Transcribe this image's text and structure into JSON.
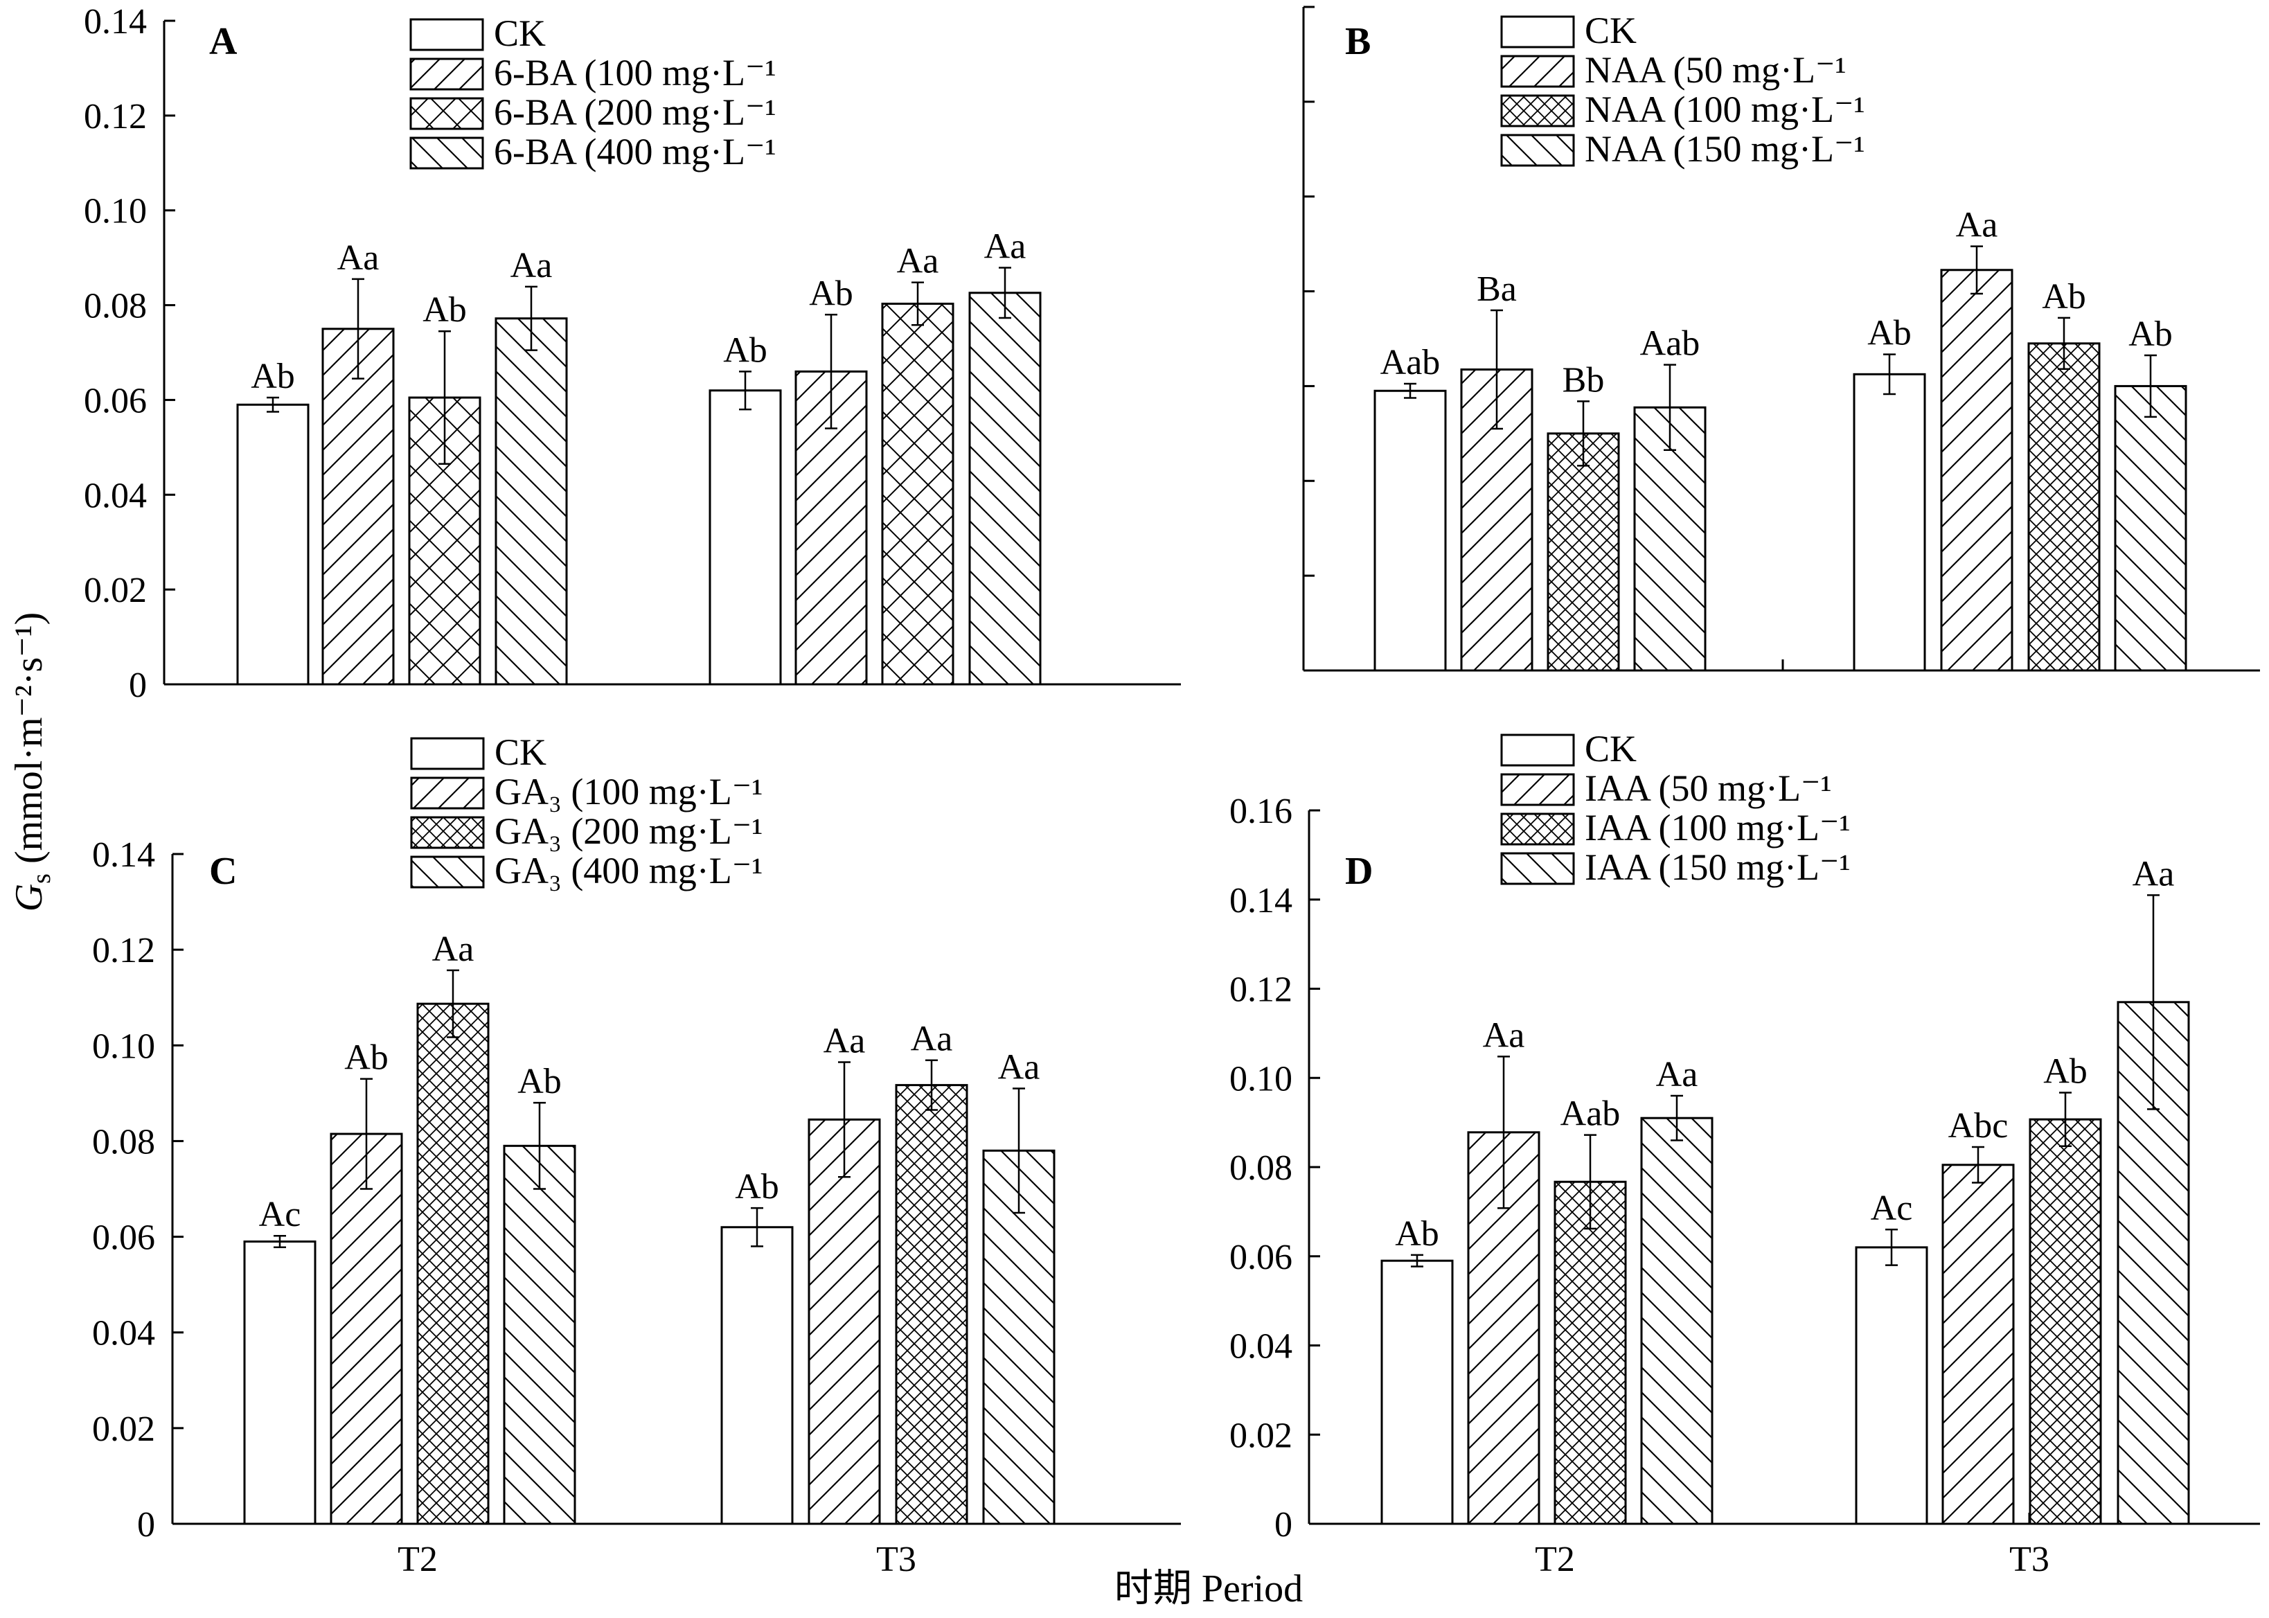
{
  "shared": {
    "ylabel_main": "G",
    "ylabel_sub": "s",
    "ylabel_rest": " (mmol·m⁻²·s⁻¹)",
    "xlabel": "时期 Period"
  },
  "chart_data": [
    {
      "type": "bar",
      "panel": "A",
      "categories": [
        "",
        ""
      ],
      "ylim": [
        0,
        0.14
      ],
      "yticks": [
        "0",
        "0.02",
        "0.04",
        "0.06",
        "0.08",
        "0.10",
        "0.12",
        "0.14"
      ],
      "legend_placement": "top-center",
      "series": [
        {
          "name": "CK",
          "pattern": "none",
          "values": [
            0.059,
            0.062
          ],
          "errors": [
            0.0015,
            0.004
          ],
          "labels": [
            "Ab",
            "Ab"
          ]
        },
        {
          "name": "6-BA (100 mg·L⁻¹",
          "pattern": "diag",
          "values": [
            0.075,
            0.066
          ],
          "errors": [
            0.0105,
            0.012
          ],
          "labels": [
            "Aa",
            "Ab"
          ]
        },
        {
          "name": "6-BA (200 mg·L⁻¹",
          "pattern": "cross",
          "values": [
            0.0605,
            0.0803
          ],
          "errors": [
            0.014,
            0.0045
          ],
          "labels": [
            "Ab",
            "Aa"
          ]
        },
        {
          "name": "6-BA (400 mg·L⁻¹",
          "pattern": "back",
          "values": [
            0.0772,
            0.0826
          ],
          "errors": [
            0.0067,
            0.0053
          ],
          "labels": [
            "Aa",
            "Aa"
          ]
        }
      ]
    },
    {
      "type": "bar",
      "panel": "B",
      "categories": [
        "",
        ""
      ],
      "ylim": [
        0,
        0.14
      ],
      "yticks": [
        "",
        "",
        "",
        "",
        "",
        "",
        "",
        ""
      ],
      "legend_placement": "top-center",
      "series": [
        {
          "name": "CK",
          "pattern": "none",
          "values": [
            0.059,
            0.0625
          ],
          "errors": [
            0.0015,
            0.0042
          ],
          "labels": [
            "Aab",
            "Ab"
          ]
        },
        {
          "name": "NAA (50 mg·L⁻¹",
          "pattern": "diag",
          "values": [
            0.0635,
            0.0845
          ],
          "errors": [
            0.0125,
            0.005
          ],
          "labels": [
            "Ba",
            "Aa"
          ]
        },
        {
          "name": "NAA (100 mg·L⁻¹",
          "pattern": "dense",
          "values": [
            0.05,
            0.069
          ],
          "errors": [
            0.0068,
            0.0054
          ],
          "labels": [
            "Bb",
            "Ab"
          ]
        },
        {
          "name": "NAA (150 mg·L⁻¹",
          "pattern": "back",
          "values": [
            0.0555,
            0.06
          ],
          "errors": [
            0.009,
            0.0065
          ],
          "labels": [
            "Aab",
            "Ab"
          ]
        }
      ]
    },
    {
      "type": "bar",
      "panel": "C",
      "categories": [
        "T2",
        "T3"
      ],
      "ylim": [
        0,
        0.14
      ],
      "yticks": [
        "0",
        "0.02",
        "0.04",
        "0.06",
        "0.08",
        "0.10",
        "0.12",
        "0.14"
      ],
      "legend_placement": "top-center",
      "series": [
        {
          "name": "CK",
          "pattern": "none",
          "values": [
            0.059,
            0.062
          ],
          "errors": [
            0.0012,
            0.004
          ],
          "labels": [
            "Ac",
            "Ab"
          ]
        },
        {
          "name": "GA₃ (100 mg·L⁻¹",
          "pattern": "diag",
          "values": [
            0.0815,
            0.0845
          ],
          "errors": [
            0.0115,
            0.012
          ],
          "labels": [
            "Ab",
            "Aa"
          ]
        },
        {
          "name": "GA₃ (200 mg·L⁻¹",
          "pattern": "dense",
          "values": [
            0.1087,
            0.0917
          ],
          "errors": [
            0.007,
            0.0052
          ],
          "labels": [
            "Aa",
            "Aa"
          ]
        },
        {
          "name": "GA₃ (400 mg·L⁻¹",
          "pattern": "back",
          "values": [
            0.079,
            0.078
          ],
          "errors": [
            0.009,
            0.013
          ],
          "labels": [
            "Ab",
            "Aa"
          ]
        }
      ]
    },
    {
      "type": "bar",
      "panel": "D",
      "categories": [
        "T2",
        "T3"
      ],
      "ylim": [
        0,
        0.16
      ],
      "yticks": [
        "0",
        "0.02",
        "0.04",
        "0.06",
        "0.08",
        "0.10",
        "0.12",
        "0.14",
        "0.16"
      ],
      "legend_placement": "top-center",
      "series": [
        {
          "name": "CK",
          "pattern": "none",
          "values": [
            0.059,
            0.062
          ],
          "errors": [
            0.0013,
            0.004
          ],
          "labels": [
            "Ab",
            "Ac"
          ]
        },
        {
          "name": "IAA (50 mg·L⁻¹",
          "pattern": "diag",
          "values": [
            0.0878,
            0.0805
          ],
          "errors": [
            0.017,
            0.004
          ],
          "labels": [
            "Aa",
            "Abc"
          ]
        },
        {
          "name": "IAA (100 mg·L⁻¹",
          "pattern": "dense",
          "values": [
            0.0767,
            0.0907
          ],
          "errors": [
            0.0105,
            0.006
          ],
          "labels": [
            "Aab",
            "Ab"
          ]
        },
        {
          "name": "IAA (150 mg·L⁻¹",
          "pattern": "back",
          "values": [
            0.091,
            0.117
          ],
          "errors": [
            0.005,
            0.024
          ],
          "labels": [
            "Aa",
            "Aa"
          ]
        }
      ]
    }
  ]
}
